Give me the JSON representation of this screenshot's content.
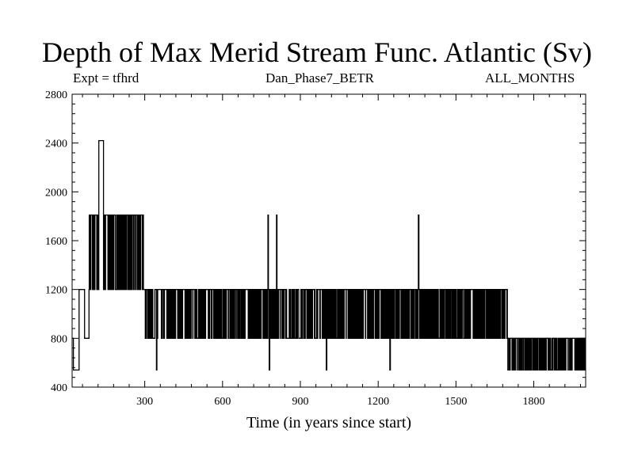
{
  "chart_data": {
    "type": "line",
    "title": "Depth of Max Merid Stream Func. Atlantic (Sv)",
    "subtitle_left": "Expt = tfhrd",
    "subtitle_center": "Dan_Phase7_BETR",
    "subtitle_right": "ALL_MONTHS",
    "xlabel": "Time (in years since start)",
    "ylabel": "",
    "xlim": [
      20,
      2000
    ],
    "ylim": [
      400,
      2800
    ],
    "x_ticks": [
      300,
      600,
      900,
      1200,
      1500,
      1800
    ],
    "y_ticks": [
      400,
      800,
      1200,
      1600,
      2000,
      2400,
      2800
    ],
    "grid": false,
    "levels": [
      540,
      800,
      1200,
      1810,
      2420
    ],
    "segments": [
      {
        "start": 20,
        "end": 25,
        "level": 800
      },
      {
        "start": 25,
        "end": 47,
        "level": 540
      },
      {
        "start": 47,
        "end": 68,
        "level": 1200
      },
      {
        "start": 68,
        "end": 85,
        "level": 800
      },
      {
        "start": 85,
        "end": 300,
        "level": 1810,
        "alternate_with": 1200
      },
      {
        "start": 123,
        "end": 140,
        "level": 2420
      },
      {
        "start": 300,
        "end": 600,
        "level": 1200,
        "alternate_with": 800
      },
      {
        "start": 600,
        "end": 1700,
        "level": 1200,
        "alternate_with": 800
      },
      {
        "start": 1700,
        "end": 2000,
        "level": 800,
        "alternate_with": 540
      }
    ],
    "spikes": [
      {
        "x": 775,
        "level": 1810
      },
      {
        "x": 808,
        "level": 1810
      },
      {
        "x": 1355,
        "level": 1810
      },
      {
        "x": 345,
        "level": 540
      },
      {
        "x": 780,
        "level": 540
      },
      {
        "x": 1000,
        "level": 540
      },
      {
        "x": 1245,
        "level": 540
      }
    ]
  }
}
